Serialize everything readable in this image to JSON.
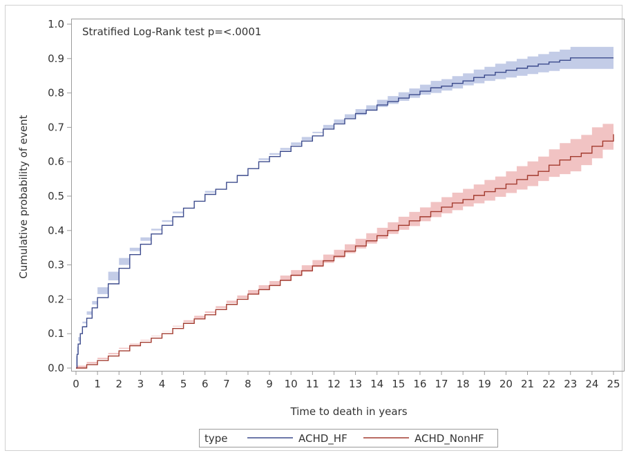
{
  "chart_data": {
    "type": "line",
    "annotation": "Stratified Log-Rank test p=<.0001",
    "xlabel": "Time to death in years",
    "ylabel": "Cumulative probability of event",
    "xlim": [
      0,
      25
    ],
    "ylim": [
      0.0,
      1.0
    ],
    "x_ticks": [
      "0",
      "1",
      "2",
      "3",
      "4",
      "5",
      "6",
      "7",
      "8",
      "9",
      "10",
      "11",
      "12",
      "13",
      "14",
      "15",
      "16",
      "17",
      "18",
      "19",
      "20",
      "21",
      "22",
      "23",
      "24",
      "25"
    ],
    "y_ticks": [
      "0.0",
      "0.1",
      "0.2",
      "0.3",
      "0.4",
      "0.5",
      "0.6",
      "0.7",
      "0.8",
      "0.9",
      "1.0"
    ],
    "grid": false,
    "legend": {
      "title": "type",
      "placement": "bottom-center"
    },
    "series": [
      {
        "name": "ACHD_HF",
        "color": "#3b4a8c",
        "band_color": "#b9c3e3",
        "x": [
          0,
          0.05,
          0.1,
          0.2,
          0.3,
          0.5,
          0.75,
          1,
          1.5,
          2,
          2.5,
          3,
          3.5,
          4,
          4.5,
          5,
          5.5,
          6,
          6.5,
          7,
          7.5,
          8,
          8.5,
          9,
          9.5,
          10,
          10.5,
          11,
          11.5,
          12,
          12.5,
          13,
          13.5,
          14,
          14.5,
          15,
          15.5,
          16,
          16.5,
          17,
          17.5,
          18,
          18.5,
          19,
          19.5,
          20,
          20.5,
          21,
          21.5,
          22,
          22.5,
          23,
          23.5,
          24,
          24.5,
          25
        ],
        "y": [
          0.0,
          0.04,
          0.07,
          0.1,
          0.12,
          0.145,
          0.175,
          0.205,
          0.245,
          0.29,
          0.33,
          0.36,
          0.39,
          0.415,
          0.44,
          0.465,
          0.485,
          0.505,
          0.52,
          0.54,
          0.56,
          0.58,
          0.6,
          0.615,
          0.63,
          0.645,
          0.66,
          0.675,
          0.695,
          0.71,
          0.725,
          0.74,
          0.75,
          0.765,
          0.775,
          0.785,
          0.795,
          0.805,
          0.815,
          0.82,
          0.828,
          0.835,
          0.845,
          0.852,
          0.86,
          0.866,
          0.872,
          0.878,
          0.884,
          0.89,
          0.895,
          0.902,
          0.902,
          0.902,
          0.902,
          0.902
        ],
        "lower": [
          0.0,
          0.035,
          0.062,
          0.09,
          0.11,
          0.135,
          0.165,
          0.195,
          0.235,
          0.28,
          0.32,
          0.35,
          0.38,
          0.405,
          0.43,
          0.455,
          0.475,
          0.495,
          0.51,
          0.53,
          0.55,
          0.57,
          0.59,
          0.605,
          0.62,
          0.634,
          0.648,
          0.663,
          0.683,
          0.697,
          0.712,
          0.727,
          0.736,
          0.75,
          0.759,
          0.768,
          0.777,
          0.786,
          0.795,
          0.8,
          0.807,
          0.813,
          0.822,
          0.828,
          0.835,
          0.84,
          0.845,
          0.85,
          0.855,
          0.86,
          0.864,
          0.87,
          0.87,
          0.87,
          0.87,
          0.87
        ],
        "upper": [
          0.0,
          0.045,
          0.078,
          0.11,
          0.13,
          0.155,
          0.185,
          0.215,
          0.255,
          0.3,
          0.34,
          0.37,
          0.4,
          0.425,
          0.45,
          0.475,
          0.495,
          0.515,
          0.53,
          0.55,
          0.57,
          0.59,
          0.61,
          0.625,
          0.64,
          0.656,
          0.672,
          0.687,
          0.707,
          0.723,
          0.738,
          0.753,
          0.764,
          0.78,
          0.791,
          0.802,
          0.813,
          0.824,
          0.835,
          0.84,
          0.849,
          0.857,
          0.868,
          0.876,
          0.885,
          0.892,
          0.899,
          0.906,
          0.913,
          0.92,
          0.926,
          0.934,
          0.934,
          0.934,
          0.934,
          0.934
        ]
      },
      {
        "name": "ACHD_NonHF",
        "color": "#a23a2e",
        "band_color": "#efb9b9",
        "x": [
          0,
          0.5,
          1,
          1.5,
          2,
          2.5,
          3,
          3.5,
          4,
          4.5,
          5,
          5.5,
          6,
          6.5,
          7,
          7.5,
          8,
          8.5,
          9,
          9.5,
          10,
          10.5,
          11,
          11.5,
          12,
          12.5,
          13,
          13.5,
          14,
          14.5,
          15,
          15.5,
          16,
          16.5,
          17,
          17.5,
          18,
          18.5,
          19,
          19.5,
          20,
          20.5,
          21,
          21.5,
          22,
          22.5,
          23,
          23.5,
          24,
          24.5,
          25
        ],
        "y": [
          0.0,
          0.01,
          0.022,
          0.035,
          0.05,
          0.065,
          0.075,
          0.087,
          0.1,
          0.115,
          0.13,
          0.143,
          0.155,
          0.17,
          0.185,
          0.2,
          0.215,
          0.228,
          0.24,
          0.255,
          0.27,
          0.283,
          0.297,
          0.312,
          0.325,
          0.34,
          0.355,
          0.37,
          0.385,
          0.4,
          0.415,
          0.428,
          0.44,
          0.455,
          0.468,
          0.48,
          0.49,
          0.502,
          0.513,
          0.522,
          0.535,
          0.548,
          0.56,
          0.572,
          0.59,
          0.605,
          0.615,
          0.625,
          0.645,
          0.66,
          0.68
        ],
        "lower": [
          0.0,
          0.007,
          0.018,
          0.03,
          0.044,
          0.059,
          0.068,
          0.08,
          0.092,
          0.107,
          0.121,
          0.134,
          0.145,
          0.16,
          0.174,
          0.189,
          0.203,
          0.215,
          0.227,
          0.241,
          0.255,
          0.267,
          0.28,
          0.294,
          0.306,
          0.32,
          0.334,
          0.348,
          0.362,
          0.376,
          0.39,
          0.402,
          0.413,
          0.427,
          0.439,
          0.45,
          0.459,
          0.47,
          0.479,
          0.487,
          0.498,
          0.509,
          0.519,
          0.529,
          0.544,
          0.556,
          0.564,
          0.572,
          0.59,
          0.61,
          0.635
        ],
        "upper": [
          0.0,
          0.013,
          0.026,
          0.04,
          0.056,
          0.071,
          0.082,
          0.094,
          0.108,
          0.123,
          0.139,
          0.152,
          0.165,
          0.18,
          0.196,
          0.211,
          0.227,
          0.241,
          0.253,
          0.269,
          0.285,
          0.299,
          0.314,
          0.33,
          0.344,
          0.36,
          0.376,
          0.392,
          0.408,
          0.424,
          0.44,
          0.454,
          0.467,
          0.483,
          0.497,
          0.51,
          0.521,
          0.534,
          0.547,
          0.557,
          0.572,
          0.587,
          0.601,
          0.615,
          0.636,
          0.654,
          0.666,
          0.678,
          0.7,
          0.71,
          0.725
        ]
      }
    ]
  }
}
